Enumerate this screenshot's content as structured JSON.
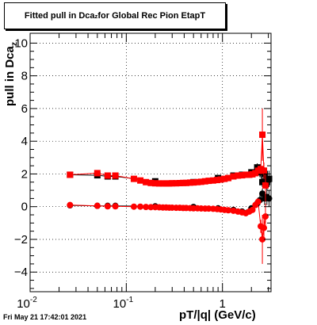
{
  "title": {
    "prefix": "Fitted pull in Dca",
    "sub": "z",
    "suffix": " for Global Rec Pion EtapT"
  },
  "xlabel": "pT/|q| (GeV/c)",
  "ylabel": {
    "prefix": "pull in Dca",
    "sub": "z"
  },
  "date": "Fri May 21 17:42:01 2021",
  "colors": {
    "red": "#ff0000",
    "black": "#000000",
    "grid": "#000000"
  },
  "chart_data": {
    "type": "scatter",
    "title": "Fitted pull in Dcaz for Global Rec Pion EtapT",
    "xlabel": "pT/|q| (GeV/c)",
    "ylabel": "pull in Dcaz",
    "xscale": "log",
    "xlim": [
      0.01,
      3.2
    ],
    "ylim": [
      -5.2,
      10.6
    ],
    "grid": true,
    "x_tick_labels": [
      {
        "label": "10",
        "exp": "-2",
        "value": 0.01
      },
      {
        "label": "10",
        "exp": "-1",
        "value": 0.1
      },
      {
        "label": "1",
        "exp": "",
        "value": 1
      }
    ],
    "y_tick_labels": [
      "−4",
      "−2",
      "0",
      "2",
      "4",
      "6",
      "8",
      "10"
    ],
    "y_tick_values": [
      -4,
      -2,
      0,
      2,
      4,
      6,
      8,
      10
    ],
    "series": [
      {
        "color": "#000000",
        "marker": "square",
        "x": [
          0.026,
          0.05,
          0.064,
          0.077,
          0.2,
          0.5,
          0.9,
          1.3,
          1.6,
          2.0,
          2.3,
          2.45,
          2.6,
          2.75,
          2.9,
          3.05
        ],
        "y": [
          1.95,
          1.92,
          1.85,
          1.85,
          1.55,
          1.5,
          1.75,
          1.9,
          1.95,
          2.1,
          2.4,
          2.1,
          1.5,
          2.0,
          1.5,
          1.7
        ],
        "err": [
          0.05,
          0.05,
          0.05,
          0.05,
          0.03,
          0.03,
          0.05,
          0.08,
          0.1,
          0.15,
          0.25,
          0.3,
          0.3,
          0.4,
          0.5,
          0.5
        ]
      },
      {
        "color": "#000000",
        "marker": "circle",
        "x": [
          0.026,
          0.05,
          0.064,
          0.077,
          0.2,
          0.5,
          0.9,
          1.3,
          1.6,
          2.0,
          2.3,
          2.45,
          2.6,
          2.75,
          2.9,
          3.05
        ],
        "y": [
          0.08,
          0.05,
          0.05,
          0.05,
          0.02,
          -0.02,
          -0.1,
          -0.2,
          -0.3,
          -0.1,
          0.2,
          0.4,
          0.8,
          0.5,
          0.6,
          0.5
        ],
        "err": [
          0.05,
          0.05,
          0.05,
          0.05,
          0.03,
          0.03,
          0.05,
          0.08,
          0.1,
          0.15,
          0.25,
          0.3,
          0.3,
          0.4,
          0.5,
          0.5
        ]
      },
      {
        "color": "#ff0000",
        "marker": "square",
        "x": [
          0.026,
          0.05,
          0.064,
          0.077,
          0.12,
          0.14,
          0.16,
          0.18,
          0.2,
          0.22,
          0.24,
          0.26,
          0.28,
          0.3,
          0.33,
          0.36,
          0.39,
          0.42,
          0.46,
          0.5,
          0.55,
          0.6,
          0.66,
          0.72,
          0.8,
          0.88,
          0.96,
          1.05,
          1.15,
          1.3,
          1.45,
          1.6,
          1.75,
          1.9,
          2.05,
          2.2,
          2.35,
          2.5,
          2.6,
          2.7,
          2.8
        ],
        "y": [
          1.95,
          2.05,
          1.9,
          1.9,
          1.7,
          1.6,
          1.5,
          1.45,
          1.43,
          1.42,
          1.42,
          1.42,
          1.42,
          1.43,
          1.43,
          1.44,
          1.45,
          1.45,
          1.47,
          1.48,
          1.5,
          1.52,
          1.55,
          1.58,
          1.6,
          1.63,
          1.66,
          1.7,
          1.75,
          1.85,
          1.9,
          1.92,
          1.95,
          1.95,
          1.98,
          2.05,
          2.2,
          2.3,
          4.4,
          2.2,
          1.3
        ],
        "err": [
          0.06,
          0.06,
          0.05,
          0.05,
          0.04,
          0.04,
          0.03,
          0.03,
          0.03,
          0.03,
          0.03,
          0.03,
          0.03,
          0.03,
          0.03,
          0.03,
          0.03,
          0.03,
          0.03,
          0.03,
          0.03,
          0.03,
          0.03,
          0.03,
          0.04,
          0.04,
          0.04,
          0.05,
          0.05,
          0.06,
          0.07,
          0.08,
          0.09,
          0.1,
          0.12,
          0.15,
          0.2,
          0.3,
          1.6,
          0.5,
          1.0
        ]
      },
      {
        "color": "#ff0000",
        "marker": "circle",
        "x": [
          0.026,
          0.05,
          0.064,
          0.077,
          0.12,
          0.14,
          0.16,
          0.18,
          0.2,
          0.22,
          0.24,
          0.26,
          0.28,
          0.3,
          0.33,
          0.36,
          0.39,
          0.42,
          0.46,
          0.5,
          0.55,
          0.6,
          0.66,
          0.72,
          0.8,
          0.88,
          0.96,
          1.05,
          1.15,
          1.3,
          1.45,
          1.6,
          1.75,
          1.9,
          2.05,
          2.2,
          2.35,
          2.5,
          2.6,
          2.7,
          2.8
        ],
        "y": [
          0.1,
          0.05,
          0.02,
          0.02,
          0.0,
          0.0,
          -0.02,
          -0.03,
          -0.03,
          -0.04,
          -0.05,
          -0.05,
          -0.06,
          -0.06,
          -0.07,
          -0.07,
          -0.08,
          -0.08,
          -0.09,
          -0.1,
          -0.1,
          -0.11,
          -0.12,
          -0.12,
          -0.13,
          -0.15,
          -0.17,
          -0.2,
          -0.22,
          -0.25,
          -0.3,
          -0.35,
          -0.4,
          -0.3,
          -0.2,
          0.1,
          0.3,
          -1.2,
          -2.0,
          -1.3,
          -0.6
        ],
        "err": [
          0.06,
          0.06,
          0.05,
          0.05,
          0.04,
          0.04,
          0.03,
          0.03,
          0.03,
          0.03,
          0.03,
          0.03,
          0.03,
          0.03,
          0.03,
          0.03,
          0.03,
          0.03,
          0.03,
          0.03,
          0.03,
          0.03,
          0.03,
          0.03,
          0.04,
          0.04,
          0.04,
          0.05,
          0.05,
          0.06,
          0.07,
          0.08,
          0.09,
          0.1,
          0.12,
          0.15,
          0.2,
          0.4,
          1.5,
          0.6,
          0.8
        ]
      }
    ]
  }
}
